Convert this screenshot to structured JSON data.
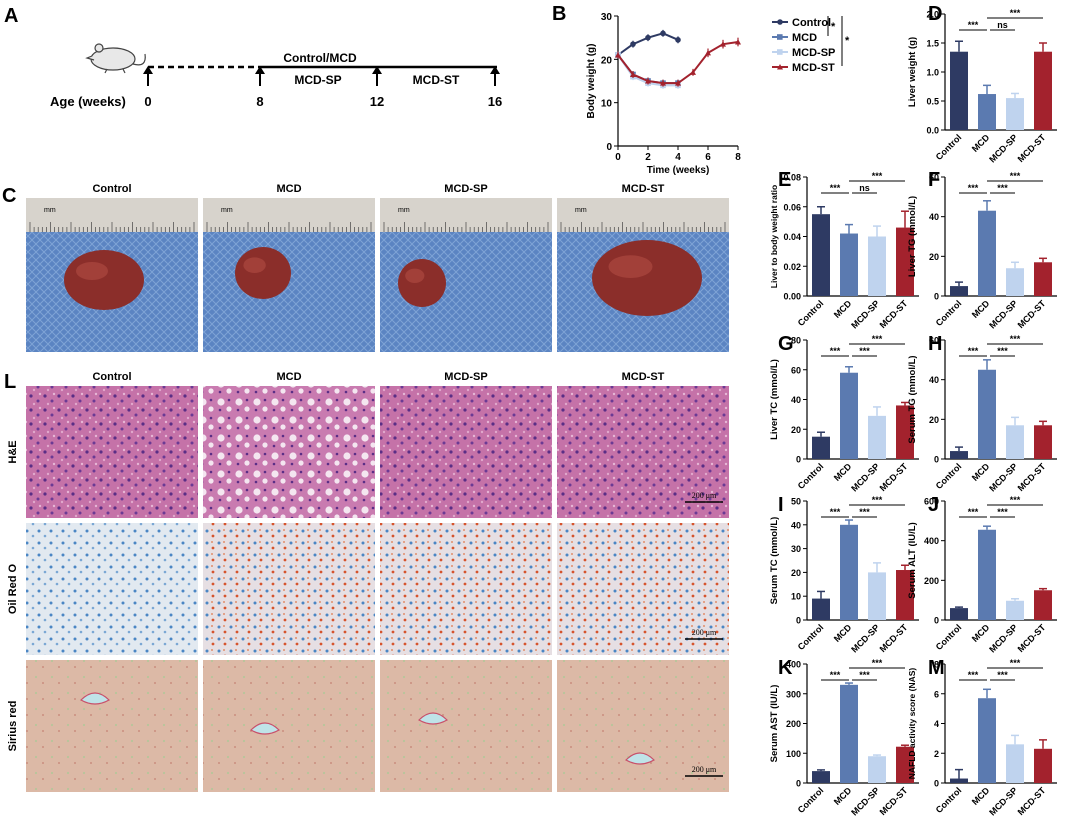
{
  "colors": {
    "control": "#2e3a63",
    "mcd": "#5b7ab0",
    "mcd_sp": "#bfd3ee",
    "mcd_st": "#a3222d",
    "ruler_bg": "#d7d3cc",
    "drape": "#5d86c3",
    "he": "#c86fa7",
    "oil": "#dde6ef",
    "sirius": "#d9b6a3"
  },
  "panel_letters": {
    "A": "A",
    "B": "B",
    "C": "C",
    "D": "D",
    "E": "E",
    "F": "F",
    "G": "G",
    "H": "H",
    "I": "I",
    "J": "J",
    "K": "K",
    "L": "L",
    "M": "M"
  },
  "timeline": {
    "age_label": "Age (weeks)",
    "ticks": [
      "0",
      "8",
      "12",
      "16"
    ],
    "label_top": "Control/MCD",
    "label_sp": "MCD-SP",
    "label_st": "MCD-ST",
    "mouse_icon": "mouse-icon"
  },
  "panel_c": {
    "groups": [
      "Control",
      "MCD",
      "MCD-SP",
      "MCD-ST"
    ],
    "ruler_unit": "mm"
  },
  "panel_l": {
    "groups": [
      "Control",
      "MCD",
      "MCD-SP",
      "MCD-ST"
    ],
    "rows": [
      "H&E",
      "Oil Red O",
      "Sirius red"
    ],
    "scale": "200 μm"
  },
  "chart_data": [
    {
      "panel": "B",
      "type": "line",
      "xlabel": "Time (weeks)",
      "ylabel": "Body weight (g)",
      "xlim": [
        0,
        8
      ],
      "ylim": [
        0,
        30
      ],
      "xticks": [
        0,
        2,
        4,
        6,
        8
      ],
      "yticks": [
        0,
        10,
        20,
        30
      ],
      "series": [
        {
          "name": "Control",
          "x": [
            0,
            1,
            2,
            3,
            4
          ],
          "y": [
            21,
            23.5,
            25,
            26,
            24.5
          ],
          "err": [
            0.8,
            0.8,
            0.8,
            0.8,
            0.8
          ]
        },
        {
          "name": "MCD",
          "x": [
            0,
            1,
            2,
            3,
            4
          ],
          "y": [
            21,
            16.5,
            15,
            14.5,
            14.5
          ],
          "err": [
            0.8,
            0.8,
            0.8,
            0.8,
            0.8
          ]
        },
        {
          "name": "MCD-SP",
          "x": [
            0,
            1,
            2,
            3,
            4
          ],
          "y": [
            21,
            16,
            14.5,
            14,
            14
          ],
          "err": [
            0.8,
            0.8,
            0.8,
            0.8,
            0.8
          ]
        },
        {
          "name": "MCD-ST",
          "x": [
            0,
            1,
            2,
            3,
            4,
            5,
            6,
            7,
            8
          ],
          "y": [
            21,
            16.5,
            15,
            14.5,
            14.5,
            17,
            21.5,
            23.5,
            24
          ],
          "err": [
            0.8,
            0.8,
            0.8,
            0.8,
            0.8,
            0.8,
            1.0,
            1.0,
            1.0
          ]
        }
      ],
      "significance": [
        "*",
        "*"
      ]
    },
    {
      "panel": "D",
      "type": "bar",
      "ylabel": "Liver weight (g)",
      "categories": [
        "Control",
        "MCD",
        "MCD-SP",
        "MCD-ST"
      ],
      "values": [
        1.35,
        0.62,
        0.55,
        1.35
      ],
      "errors": [
        0.18,
        0.15,
        0.08,
        0.15
      ],
      "ylim": [
        0,
        2.0
      ],
      "yticks": [
        0,
        0.5,
        1.0,
        1.5,
        2.0
      ],
      "ytick_labels": [
        "0.0",
        "0.5",
        "1.0",
        "1.5",
        "2.0"
      ],
      "sig": [
        {
          "a": 0,
          "b": 1,
          "text": "***",
          "level": 1
        },
        {
          "a": 1,
          "b": 2,
          "text": "ns",
          "level": 1
        },
        {
          "a": 1,
          "b": 3,
          "text": "***",
          "level": 2
        }
      ]
    },
    {
      "panel": "E",
      "type": "bar",
      "ylabel": "Liver to body weight ratio",
      "categories": [
        "Control",
        "MCD",
        "MCD-SP",
        "MCD-ST"
      ],
      "values": [
        0.055,
        0.042,
        0.04,
        0.046
      ],
      "errors": [
        0.005,
        0.006,
        0.007,
        0.011
      ],
      "ylim": [
        0,
        0.08
      ],
      "yticks": [
        0,
        0.02,
        0.04,
        0.06,
        0.08
      ],
      "ytick_labels": [
        "0.00",
        "0.02",
        "0.04",
        "0.06",
        "0.08"
      ],
      "sig": [
        {
          "a": 0,
          "b": 1,
          "text": "***",
          "level": 1
        },
        {
          "a": 1,
          "b": 2,
          "text": "ns",
          "level": 1
        },
        {
          "a": 1,
          "b": 3,
          "text": "***",
          "level": 2
        }
      ]
    },
    {
      "panel": "F",
      "type": "bar",
      "ylabel": "Liver TG (mmol/L)",
      "categories": [
        "Control",
        "MCD",
        "MCD-SP",
        "MCD-ST"
      ],
      "values": [
        5,
        43,
        14,
        17
      ],
      "errors": [
        2,
        5,
        3,
        2
      ],
      "ylim": [
        0,
        60
      ],
      "yticks": [
        0,
        20,
        40,
        60
      ],
      "ytick_labels": [
        "0",
        "20",
        "40",
        "60"
      ],
      "sig": [
        {
          "a": 0,
          "b": 1,
          "text": "***",
          "level": 1
        },
        {
          "a": 1,
          "b": 2,
          "text": "***",
          "level": 1
        },
        {
          "a": 1,
          "b": 3,
          "text": "***",
          "level": 2
        }
      ]
    },
    {
      "panel": "G",
      "type": "bar",
      "ylabel": "Liver TC (mmol/L)",
      "categories": [
        "Control",
        "MCD",
        "MCD-SP",
        "MCD-ST"
      ],
      "values": [
        15,
        58,
        29,
        36
      ],
      "errors": [
        3,
        4,
        6,
        2
      ],
      "ylim": [
        0,
        80
      ],
      "yticks": [
        0,
        20,
        40,
        60,
        80
      ],
      "ytick_labels": [
        "0",
        "20",
        "40",
        "60",
        "80"
      ],
      "sig": [
        {
          "a": 0,
          "b": 1,
          "text": "***",
          "level": 1
        },
        {
          "a": 1,
          "b": 2,
          "text": "***",
          "level": 1
        },
        {
          "a": 1,
          "b": 3,
          "text": "***",
          "level": 2
        }
      ]
    },
    {
      "panel": "H",
      "type": "bar",
      "ylabel": "Serum TG (mmol/L)",
      "categories": [
        "Control",
        "MCD",
        "MCD-SP",
        "MCD-ST"
      ],
      "values": [
        4,
        45,
        17,
        17
      ],
      "errors": [
        2,
        5,
        4,
        2
      ],
      "ylim": [
        0,
        60
      ],
      "yticks": [
        0,
        20,
        40,
        60
      ],
      "ytick_labels": [
        "0",
        "20",
        "40",
        "60"
      ],
      "sig": [
        {
          "a": 0,
          "b": 1,
          "text": "***",
          "level": 1
        },
        {
          "a": 1,
          "b": 2,
          "text": "***",
          "level": 1
        },
        {
          "a": 1,
          "b": 3,
          "text": "***",
          "level": 2
        }
      ]
    },
    {
      "panel": "I",
      "type": "bar",
      "ylabel": "Serum TC (mmol/L)",
      "categories": [
        "Control",
        "MCD",
        "MCD-SP",
        "MCD-ST"
      ],
      "values": [
        9,
        40,
        20,
        21
      ],
      "errors": [
        3,
        2,
        4,
        2
      ],
      "ylim": [
        0,
        50
      ],
      "yticks": [
        0,
        10,
        20,
        30,
        40,
        50
      ],
      "ytick_labels": [
        "0",
        "10",
        "20",
        "30",
        "40",
        "50"
      ],
      "sig": [
        {
          "a": 0,
          "b": 1,
          "text": "***",
          "level": 1
        },
        {
          "a": 1,
          "b": 2,
          "text": "***",
          "level": 1
        },
        {
          "a": 1,
          "b": 3,
          "text": "***",
          "level": 2
        }
      ]
    },
    {
      "panel": "J",
      "type": "bar",
      "ylabel": "Serum ALT (IU/L)",
      "categories": [
        "Control",
        "MCD",
        "MCD-SP",
        "MCD-ST"
      ],
      "values": [
        60,
        455,
        97,
        150
      ],
      "errors": [
        5,
        18,
        10,
        8
      ],
      "ylim": [
        0,
        600
      ],
      "yticks": [
        0,
        200,
        400,
        600
      ],
      "ytick_labels": [
        "0",
        "200",
        "400",
        "600"
      ],
      "sig": [
        {
          "a": 0,
          "b": 1,
          "text": "***",
          "level": 1
        },
        {
          "a": 1,
          "b": 2,
          "text": "***",
          "level": 1
        },
        {
          "a": 1,
          "b": 3,
          "text": "***",
          "level": 2
        }
      ]
    },
    {
      "panel": "K",
      "type": "bar",
      "ylabel": "Serum AST (IU/L)",
      "categories": [
        "Control",
        "MCD",
        "MCD-SP",
        "MCD-ST"
      ],
      "values": [
        40,
        330,
        90,
        122
      ],
      "errors": [
        4,
        6,
        4,
        5
      ],
      "ylim": [
        0,
        400
      ],
      "yticks": [
        0,
        100,
        200,
        300,
        400
      ],
      "ytick_labels": [
        "0",
        "100",
        "200",
        "300",
        "400"
      ],
      "sig": [
        {
          "a": 0,
          "b": 1,
          "text": "***",
          "level": 1
        },
        {
          "a": 1,
          "b": 2,
          "text": "***",
          "level": 1
        },
        {
          "a": 1,
          "b": 3,
          "text": "***",
          "level": 2
        }
      ]
    },
    {
      "panel": "M",
      "type": "bar",
      "ylabel": "NAFLD activity score (NAS)",
      "categories": [
        "Control",
        "MCD",
        "MCD-SP",
        "MCD-ST"
      ],
      "values": [
        0.3,
        5.7,
        2.6,
        2.3
      ],
      "errors": [
        0.6,
        0.6,
        0.6,
        0.6
      ],
      "ylim": [
        0,
        8
      ],
      "yticks": [
        0,
        2,
        4,
        6,
        8
      ],
      "ytick_labels": [
        "0",
        "2",
        "4",
        "6",
        "8"
      ],
      "sig": [
        {
          "a": 0,
          "b": 1,
          "text": "***",
          "level": 1
        },
        {
          "a": 1,
          "b": 2,
          "text": "***",
          "level": 1
        },
        {
          "a": 1,
          "b": 3,
          "text": "***",
          "level": 2
        }
      ]
    }
  ]
}
